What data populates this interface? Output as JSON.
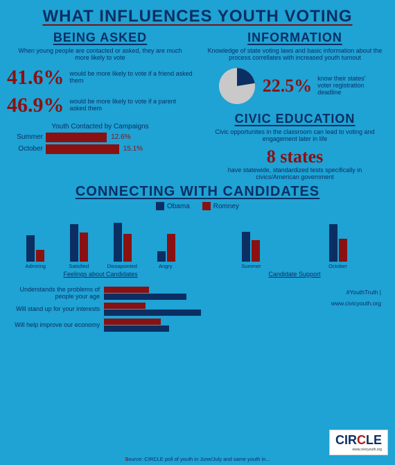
{
  "colors": {
    "bg": "#1fa2d4",
    "navy": "#0b2f63",
    "maroon": "#8a1111",
    "gray": "#c9c9c9"
  },
  "title": "WHAT INFLUENCES YOUTH VOTING",
  "being_asked": {
    "heading": "BEING ASKED",
    "desc": "When young people are contacted or asked, they are much more likely to vote",
    "stat1_pct": "41.6%",
    "stat1_label": "would be more likely to vote if a friend asked them",
    "stat2_pct": "46.9%",
    "stat2_label": "would be more likely to vote if a parent asked them",
    "chart_title": "Youth Contacted by Campaigns",
    "bars": [
      {
        "label": "Summer",
        "value": 12.6,
        "text": "12.6%"
      },
      {
        "label": "October",
        "value": 15.1,
        "text": "15.1%"
      }
    ],
    "bar_max": 20,
    "bar_color": "#8a1111"
  },
  "information": {
    "heading": "INFORMATION",
    "desc": "Knowledge of state voting laws and basic information about the process correllates with increased youth turnout",
    "pie_pct": 22.5,
    "pie_text": "22.5%",
    "pie_label": "know their states' voter registration deadline",
    "pie_slice_color": "#0b2f63",
    "pie_rest_color": "#c9c9c9"
  },
  "civic": {
    "heading": "CIVIC EDUCATION",
    "desc": "Civic opportunites in the classroom can lead to voting and engagement later in life",
    "states_text": "8 states",
    "states_sub": "have statewide, standardized tests specifically in civics/American government"
  },
  "connecting": {
    "heading": "CONNECTING WITH CANDIDATES",
    "legend": [
      {
        "label": "Obama",
        "color": "#0b2f63"
      },
      {
        "label": "Romney",
        "color": "#8a1111"
      }
    ],
    "feelings": {
      "caption": "Feelings about Candidates",
      "categories": [
        "Admiring",
        "Satisfied",
        "Dissapointed",
        "Angry"
      ],
      "obama": [
        55,
        78,
        80,
        22
      ],
      "romney": [
        25,
        60,
        58,
        58
      ],
      "ymax": 100
    },
    "support": {
      "caption": "Candidate Support",
      "categories": [
        "Summer",
        "October"
      ],
      "obama": [
        62,
        78
      ],
      "romney": [
        45,
        48
      ],
      "ymax": 100
    },
    "traits": {
      "items": [
        {
          "label": "Understands the problems of people your age",
          "obama": 70,
          "romney": 38
        },
        {
          "label": "Will stand up for your interests",
          "obama": 82,
          "romney": 35
        },
        {
          "label": "Will help improve our economy",
          "obama": 55,
          "romney": 48
        }
      ],
      "max": 100
    }
  },
  "meta": {
    "hashtag": "#YouthTruth |",
    "url": "www.civicyouth.org",
    "logo": "CIRCLE",
    "logo_sub": "www.civicyouth.org"
  },
  "source_prefix": "S",
  "source": "ource: CIRCLE poll of youth in June/July and same youth in..."
}
